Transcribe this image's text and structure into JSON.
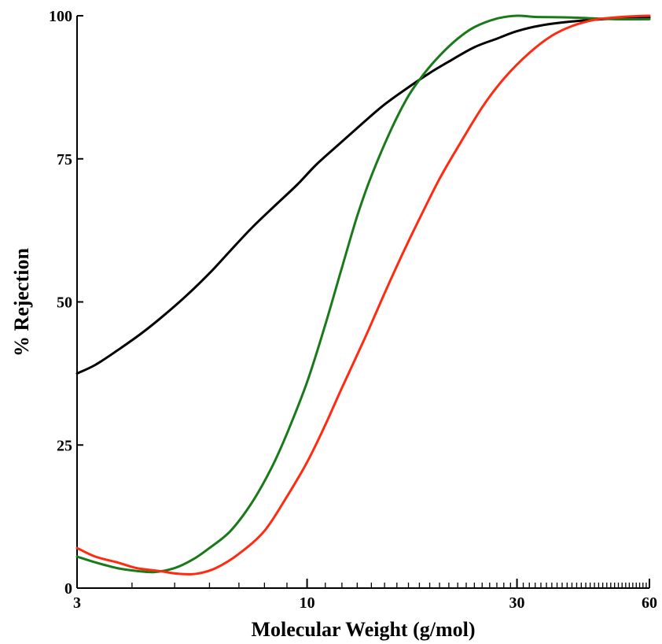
{
  "chart_data": {
    "type": "line",
    "title": "",
    "xlabel": "Molecular Weight (g/mol)",
    "ylabel": "% Rejection",
    "x_scale": "log",
    "xlim": [
      3,
      60
    ],
    "ylim": [
      0,
      100
    ],
    "x_ticks": [
      3,
      10,
      30,
      60
    ],
    "x_tick_labels": [
      "3",
      "10",
      "30",
      "60"
    ],
    "y_ticks": [
      0,
      25,
      50,
      75,
      100
    ],
    "y_tick_labels": [
      "0",
      "25",
      "50",
      "75",
      "100"
    ],
    "grid": false,
    "legend": "none",
    "series": [
      {
        "color": "#000000",
        "x": [
          3.0,
          3.3,
          3.7,
          4.2,
          4.7,
          5.3,
          6.0,
          6.7,
          7.5,
          8.5,
          9.5,
          10.5,
          12.0,
          13.5,
          15.0,
          17.0,
          19.0,
          21.0,
          24.0,
          27.0,
          30.0,
          34.0,
          40.0,
          47.0,
          55.0,
          60.0
        ],
        "y": [
          37.5,
          39.0,
          41.5,
          44.5,
          47.5,
          51.0,
          55.0,
          59.0,
          63.0,
          67.0,
          70.5,
          74.0,
          78.0,
          81.5,
          84.5,
          87.5,
          90.0,
          92.0,
          94.5,
          96.0,
          97.3,
          98.3,
          99.0,
          99.4,
          99.6,
          99.7
        ]
      },
      {
        "color": "#1a7a1a",
        "x": [
          3.0,
          3.3,
          3.7,
          4.1,
          4.5,
          5.0,
          5.5,
          6.0,
          6.7,
          7.5,
          8.3,
          9.0,
          10.0,
          11.0,
          12.0,
          13.0,
          14.0,
          15.5,
          17.0,
          18.5,
          20.0,
          22.0,
          24.0,
          27.0,
          30.0,
          33.0,
          40.0,
          50.0,
          60.0
        ],
        "y": [
          5.5,
          4.5,
          3.5,
          3.0,
          2.8,
          3.5,
          5.0,
          7.0,
          10.0,
          15.0,
          21.0,
          27.0,
          36.0,
          46.0,
          56.0,
          65.0,
          72.0,
          80.0,
          86.0,
          90.0,
          93.0,
          96.0,
          98.0,
          99.5,
          100.0,
          99.8,
          99.7,
          99.4,
          99.4
        ]
      },
      {
        "color": "#ff2a10",
        "x": [
          3.0,
          3.3,
          3.7,
          4.1,
          4.6,
          5.1,
          5.6,
          6.2,
          7.0,
          8.0,
          9.0,
          10.0,
          11.0,
          12.0,
          13.5,
          15.0,
          16.5,
          18.0,
          20.0,
          22.0,
          25.0,
          28.0,
          32.0,
          36.0,
          40.0,
          45.0,
          50.0,
          55.0,
          60.0
        ],
        "y": [
          7.0,
          5.5,
          4.5,
          3.5,
          3.0,
          2.5,
          2.5,
          3.5,
          6.0,
          10.0,
          16.0,
          22.0,
          28.5,
          35.0,
          43.5,
          51.5,
          58.5,
          64.5,
          71.5,
          77.0,
          84.0,
          89.0,
          93.5,
          96.5,
          98.2,
          99.3,
          99.7,
          99.9,
          100.0
        ]
      }
    ]
  }
}
